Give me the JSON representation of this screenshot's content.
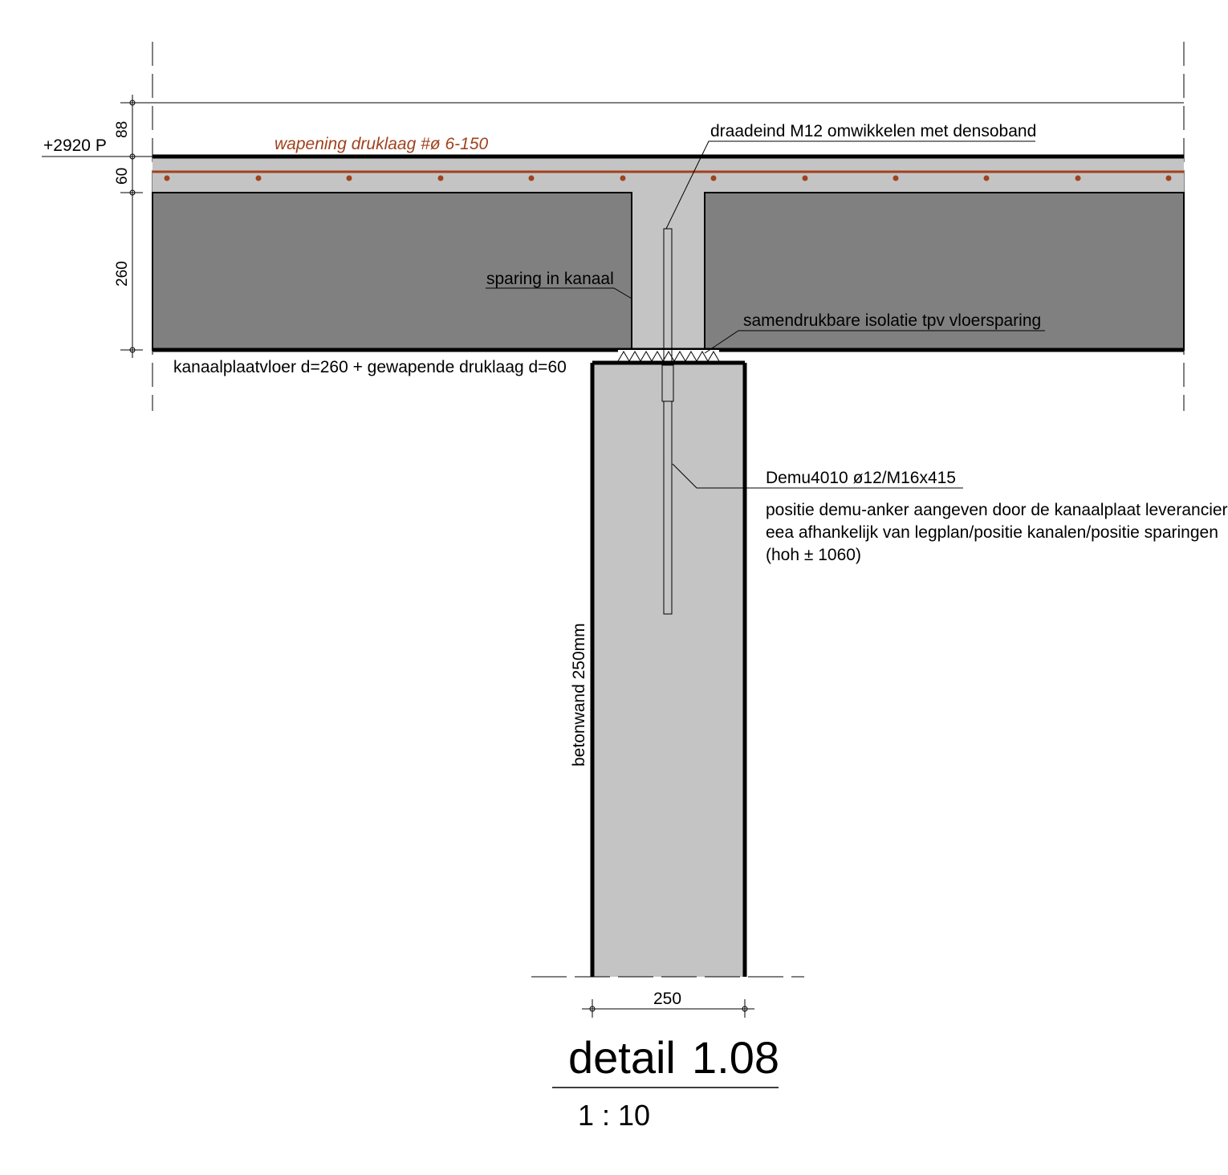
{
  "labels": {
    "level": "+2920 P",
    "reinforcement": "wapening druklaag #ø 6-150",
    "thread_end": "draadeind M12 omwikkelen met densoband",
    "recess": "sparing in kanaal",
    "insulation": "samendrukbare isolatie tpv vloersparing",
    "floor": "kanaalplaatvloer d=260 + gewapende druklaag d=60",
    "anchor": "Demu4010 ø12/M16x415",
    "note_line1": "positie demu-anker aangeven door de kanaalplaat leverancier",
    "note_line2": "eea afhankelijk van legplan/positie kanalen/positie sparingen",
    "note_line3": "(hoh ± 1060)",
    "wall": "betonwand 250mm"
  },
  "dimensions": {
    "top_layer": "88",
    "topping": "60",
    "slab": "260",
    "wall_width": "250"
  },
  "title": {
    "detail": "detail",
    "number": "1.08",
    "scale": "1 : 10"
  },
  "colors": {
    "rebar": "#a0421e",
    "slab_fill": "#808080",
    "concrete_fill": "#c4c4c4",
    "line": "#000000"
  }
}
